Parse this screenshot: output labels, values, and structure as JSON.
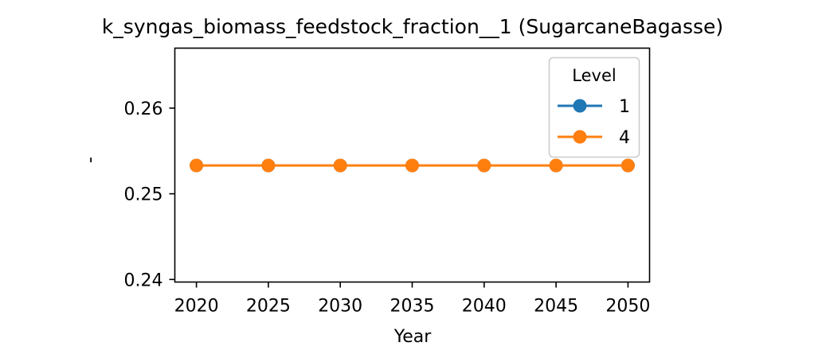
{
  "chart_data": {
    "type": "line",
    "title": "k_syngas_biomass_feedstock_fraction__1 (SugarcaneBagasse)",
    "xlabel": "Year",
    "ylabel": "-",
    "x": [
      2020,
      2025,
      2030,
      2035,
      2040,
      2045,
      2050
    ],
    "x_ticks": [
      "2020",
      "2025",
      "2030",
      "2035",
      "2040",
      "2045",
      "2050"
    ],
    "y_ticks": [
      "0.24",
      "0.25",
      "0.26"
    ],
    "xlim": [
      2018.5,
      2051.5
    ],
    "ylim": [
      0.2397,
      0.267
    ],
    "grid": false,
    "legend": {
      "title": "Level",
      "placement": "top-right"
    },
    "series": [
      {
        "name": "1",
        "color": "#1f77b4",
        "marker": "circle",
        "values": [
          0.2533,
          0.2533,
          0.2533,
          0.2533,
          0.2533,
          0.2533,
          0.2533
        ]
      },
      {
        "name": "4",
        "color": "#ff7f0e",
        "marker": "circle",
        "values": [
          0.2533,
          0.2533,
          0.2533,
          0.2533,
          0.2533,
          0.2533,
          0.2533
        ]
      }
    ]
  }
}
